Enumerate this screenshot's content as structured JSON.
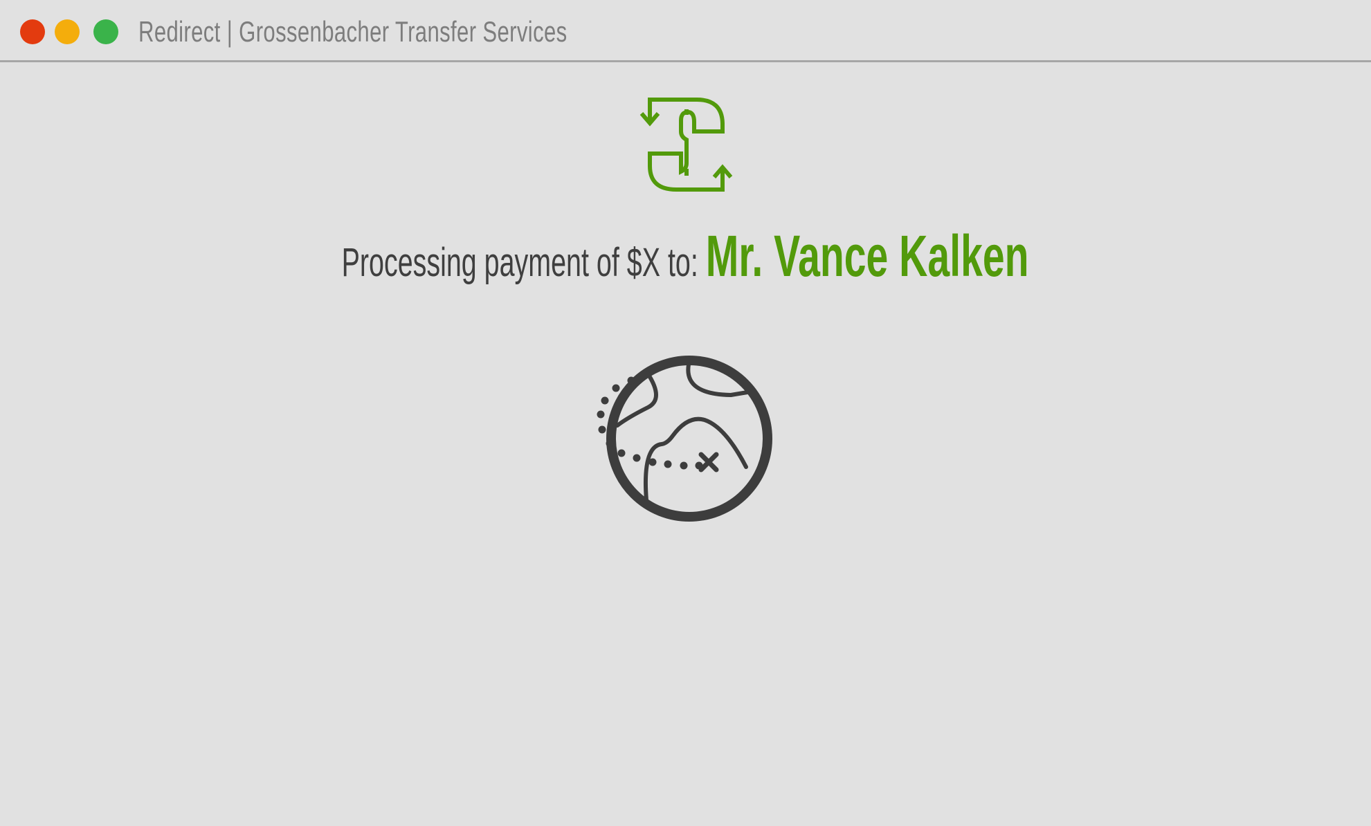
{
  "window": {
    "title": "Redirect | Grossenbacher Transfer Services",
    "controls": {
      "close_color": "#e33b0f",
      "minimize_color": "#f4ad0c",
      "maximize_color": "#3ab34a"
    }
  },
  "main": {
    "logo_icon": "money-transfer-icon",
    "headline_prefix": "Processing payment of $X to:",
    "headline_recipient": "Mr. Vance Kalken",
    "globe_icon": "globe-route-icon"
  },
  "colors": {
    "background": "#e1e1e1",
    "accent_green": "#529a0b",
    "text_dark": "#3f3f3f",
    "title_gray": "#7d7d7d"
  }
}
